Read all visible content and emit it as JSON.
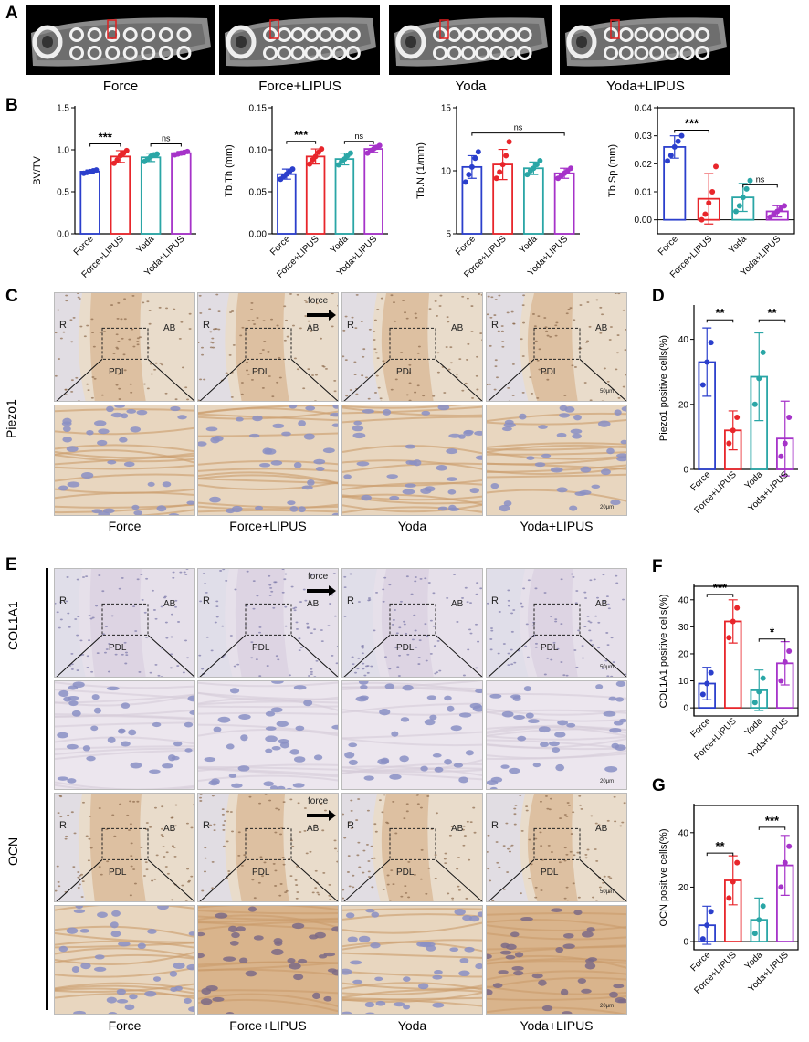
{
  "panels": {
    "A": "A",
    "B": "B",
    "C": "C",
    "D": "D",
    "E": "E",
    "F": "F",
    "G": "G"
  },
  "groups": [
    "Force",
    "Force+LIPUS",
    "Yoda",
    "Yoda+LIPUS"
  ],
  "colors": {
    "Force": "#2b3fcc",
    "Force+LIPUS": "#e8262b",
    "Yoda": "#2aa6a6",
    "Yoda+LIPUS": "#a633c9"
  },
  "tissue_labels": {
    "R": "R",
    "PDL": "PDL",
    "AB": "AB",
    "force": "force",
    "scale_50": "50μm",
    "scale_20": "20μm"
  },
  "row_labels": {
    "piezo1": "Piezo1",
    "col1a1": "COL1A1",
    "ocn": "OCN"
  },
  "chart_data": [
    {
      "id": "bvtv",
      "type": "bar",
      "categories": [
        "Force",
        "Force+LIPUS",
        "Yoda",
        "Yoda+LIPUS"
      ],
      "values": [
        0.74,
        0.92,
        0.91,
        0.96
      ],
      "errors": [
        0.02,
        0.07,
        0.05,
        0.02
      ],
      "points": [
        [
          0.72,
          0.73,
          0.74,
          0.75,
          0.76
        ],
        [
          0.84,
          0.88,
          0.93,
          0.96,
          0.99
        ],
        [
          0.86,
          0.89,
          0.92,
          0.94,
          0.95
        ],
        [
          0.94,
          0.95,
          0.96,
          0.97,
          0.98
        ]
      ],
      "ylabel": "BV/TV",
      "ylim": [
        0,
        1.5
      ],
      "yticks": [
        0.0,
        0.5,
        1.0,
        1.5
      ],
      "yticklabels": [
        "0.0",
        "0.5",
        "1.0",
        "1.5"
      ],
      "comparisons": [
        {
          "from": 0,
          "to": 1,
          "label": "***",
          "y": 1.07
        },
        {
          "from": 2,
          "to": 3,
          "label": "ns",
          "y": 1.07
        }
      ]
    },
    {
      "id": "tbth",
      "type": "bar",
      "categories": [
        "Force",
        "Force+LIPUS",
        "Yoda",
        "Yoda+LIPUS"
      ],
      "values": [
        0.071,
        0.092,
        0.089,
        0.101
      ],
      "errors": [
        0.006,
        0.009,
        0.007,
        0.004
      ],
      "points": [
        [
          0.065,
          0.068,
          0.071,
          0.074,
          0.077
        ],
        [
          0.083,
          0.088,
          0.092,
          0.097,
          0.101
        ],
        [
          0.082,
          0.086,
          0.089,
          0.093,
          0.096
        ],
        [
          0.096,
          0.099,
          0.101,
          0.103,
          0.105
        ]
      ],
      "ylabel": "Tb.Th (mm)",
      "ylim": [
        0,
        0.15
      ],
      "yticks": [
        0,
        0.05,
        0.1,
        0.15
      ],
      "yticklabels": [
        "0.00",
        "0.05",
        "0.10",
        "0.15"
      ],
      "comparisons": [
        {
          "from": 0,
          "to": 1,
          "label": "***",
          "y": 0.11
        },
        {
          "from": 2,
          "to": 3,
          "label": "ns",
          "y": 0.11
        }
      ]
    },
    {
      "id": "tbn",
      "type": "bar",
      "categories": [
        "Force",
        "Force+LIPUS",
        "Yoda",
        "Yoda+LIPUS"
      ],
      "values": [
        10.3,
        10.5,
        10.2,
        9.8
      ],
      "errors": [
        0.9,
        1.2,
        0.5,
        0.4
      ],
      "points": [
        [
          9.1,
          9.7,
          10.3,
          11.0,
          11.5
        ],
        [
          9.4,
          9.9,
          10.5,
          11.2,
          12.3
        ],
        [
          9.7,
          10.0,
          10.2,
          10.5,
          10.8
        ],
        [
          9.4,
          9.6,
          9.8,
          10.0,
          10.2
        ]
      ],
      "ylabel": "Tb.N (1/mm)",
      "ylim": [
        5,
        15
      ],
      "yticks": [
        5,
        10,
        15
      ],
      "yticklabels": [
        "5",
        "10",
        "15"
      ],
      "comparisons": [
        {
          "from": 0,
          "to": 3,
          "label": "ns",
          "y": 13.0
        }
      ]
    },
    {
      "id": "tbsp",
      "type": "bar",
      "categories": [
        "Force",
        "Force+LIPUS",
        "Yoda",
        "Yoda+LIPUS"
      ],
      "values": [
        0.026,
        0.0075,
        0.008,
        0.003
      ],
      "errors": [
        0.004,
        0.009,
        0.005,
        0.002
      ],
      "points": [
        [
          0.021,
          0.023,
          0.026,
          0.028,
          0.03
        ],
        [
          0.0,
          0.002,
          0.006,
          0.01,
          0.019
        ],
        [
          0.003,
          0.005,
          0.008,
          0.011,
          0.014
        ],
        [
          0.001,
          0.002,
          0.003,
          0.004,
          0.005
        ]
      ],
      "ylabel": "Tb.Sp (mm)",
      "ylim": [
        -0.005,
        0.04
      ],
      "yticks": [
        0.0,
        0.01,
        0.02,
        0.03,
        0.04
      ],
      "yticklabels": [
        "0.00",
        "0.01",
        "0.02",
        "0.03",
        "0.04"
      ],
      "comparisons": [
        {
          "from": 0,
          "to": 1,
          "label": "***",
          "y": 0.032
        },
        {
          "from": 2,
          "to": 3,
          "label": "ns",
          "y": 0.0125
        }
      ]
    },
    {
      "id": "piezo",
      "type": "bar",
      "categories": [
        "Force",
        "Force+LIPUS",
        "Yoda",
        "Yoda+LIPUS"
      ],
      "values": [
        33,
        12,
        28.5,
        9.5
      ],
      "errors": [
        10.5,
        6,
        13.5,
        11.5
      ],
      "points": [
        [
          26,
          33,
          39
        ],
        [
          8,
          12,
          16
        ],
        [
          20,
          28,
          36
        ],
        [
          4,
          8,
          16
        ]
      ],
      "ylabel": "Piezo1 positive cells(%)",
      "ylim": [
        0,
        50
      ],
      "yticks": [
        0,
        20,
        40
      ],
      "yticklabels": [
        "0",
        "20",
        "40"
      ],
      "comparisons": [
        {
          "from": 0,
          "to": 1,
          "label": "**",
          "y": 46
        },
        {
          "from": 2,
          "to": 3,
          "label": "**",
          "y": 46
        }
      ]
    },
    {
      "id": "col1a1",
      "type": "bar",
      "categories": [
        "Force",
        "Force+LIPUS",
        "Yoda",
        "Yoda+LIPUS"
      ],
      "values": [
        9,
        32,
        6.5,
        16.5
      ],
      "errors": [
        6,
        8,
        7.5,
        8
      ],
      "points": [
        [
          5,
          9,
          13
        ],
        [
          26,
          32,
          37
        ],
        [
          2,
          6,
          11
        ],
        [
          10,
          17,
          21
        ]
      ],
      "ylabel": "COL1A1 positive cells(%)",
      "ylim": [
        -3,
        45
      ],
      "yticks": [
        0,
        10,
        20,
        30,
        40
      ],
      "yticklabels": [
        "0",
        "10",
        "20",
        "30",
        "40"
      ],
      "comparisons": [
        {
          "from": 0,
          "to": 1,
          "label": "***",
          "y": 42
        },
        {
          "from": 2,
          "to": 3,
          "label": "*",
          "y": 25.5
        }
      ]
    },
    {
      "id": "ocn",
      "type": "bar",
      "categories": [
        "Force",
        "Force+LIPUS",
        "Yoda",
        "Yoda+LIPUS"
      ],
      "values": [
        6,
        22.5,
        8,
        28
      ],
      "errors": [
        7,
        9,
        8,
        11
      ],
      "points": [
        [
          1,
          6,
          11
        ],
        [
          16,
          22,
          29
        ],
        [
          3,
          8,
          13
        ],
        [
          20,
          29,
          35
        ]
      ],
      "ylabel": "OCN positive cells(%)",
      "ylim": [
        -3,
        50
      ],
      "yticks": [
        0,
        20,
        40
      ],
      "yticklabels": [
        "0",
        "20",
        "40"
      ],
      "comparisons": [
        {
          "from": 0,
          "to": 1,
          "label": "**",
          "y": 32.5
        },
        {
          "from": 2,
          "to": 3,
          "label": "***",
          "y": 42
        }
      ]
    }
  ]
}
